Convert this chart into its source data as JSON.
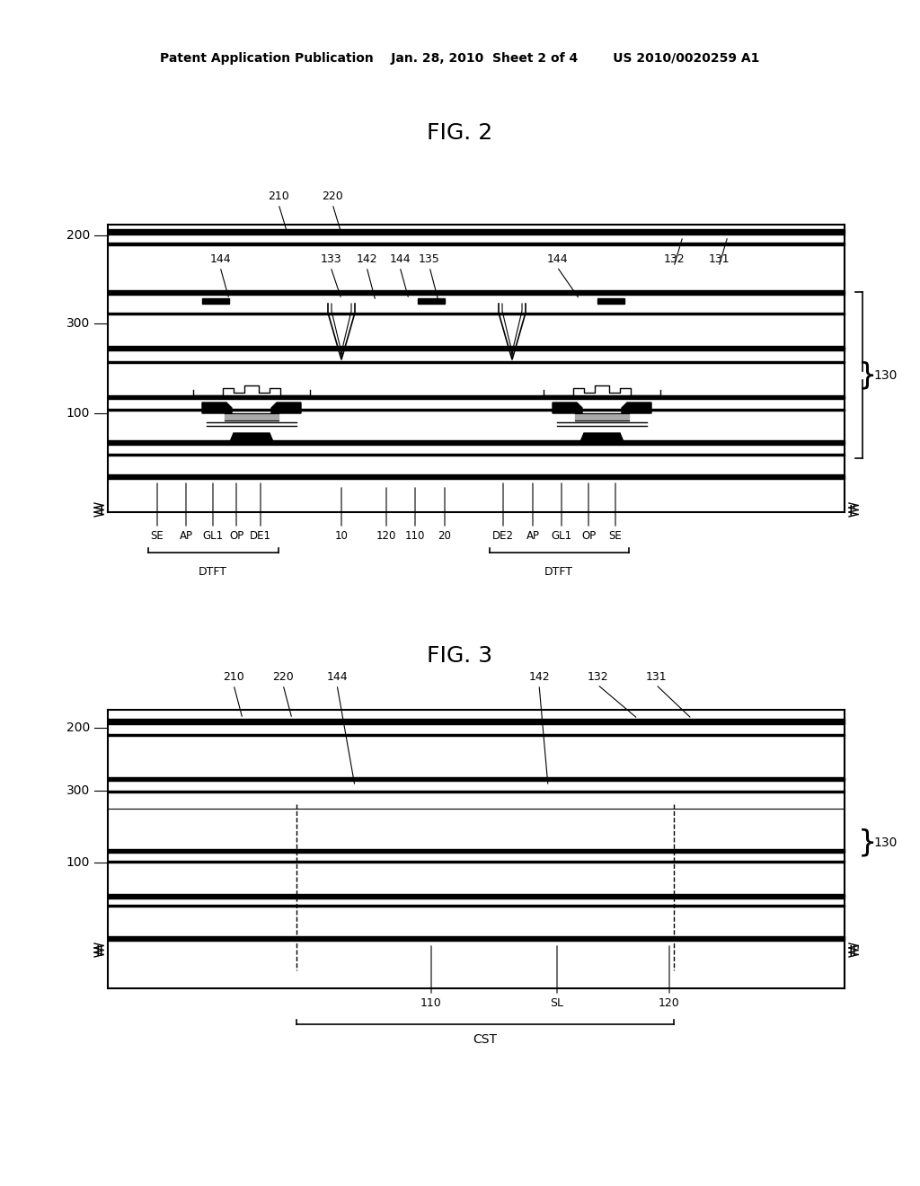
{
  "title_header": "Patent Application Publication    Jan. 28, 2010  Sheet 2 of 4        US 2010/0020259 A1",
  "fig2_title": "FIG. 2",
  "fig3_title": "FIG. 3",
  "bg_color": "#ffffff",
  "line_color": "#000000",
  "fig2_labels_top": [
    "210",
    "220",
    "144",
    "133",
    "142",
    "144",
    "135",
    "144",
    "132",
    "131"
  ],
  "fig2_left_labels": [
    "200",
    "300",
    "100"
  ],
  "fig2_right_label": "130",
  "fig2_bottom_labels": [
    "SE",
    "AP",
    "GL1",
    "OP",
    "DE1",
    "10",
    "120",
    "110",
    "20",
    "DE2",
    "AP",
    "GL1",
    "OP",
    "SE"
  ],
  "fig2_dtft_labels": [
    "DTFT",
    "DTFT"
  ],
  "fig3_labels_top": [
    "210",
    "220",
    "144",
    "142",
    "132",
    "131"
  ],
  "fig3_left_labels": [
    "200",
    "300",
    "100"
  ],
  "fig3_right_label": "130",
  "fig3_bottom_labels": [
    "110",
    "SL",
    "120"
  ],
  "fig3_cst_label": "CST"
}
